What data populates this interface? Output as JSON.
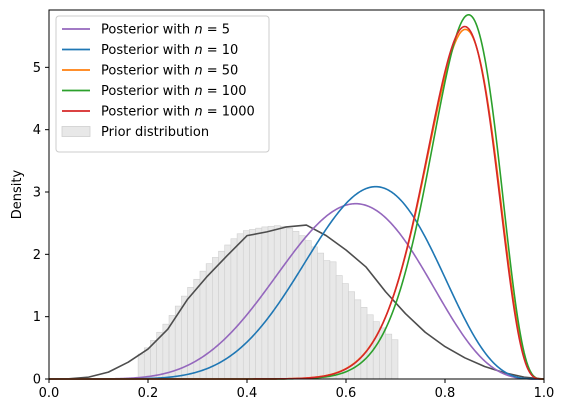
{
  "chart_data": {
    "type": "line",
    "title": "",
    "xlabel": "",
    "ylabel": "Density",
    "xlim": [
      0.0,
      1.0
    ],
    "ylim": [
      0.0,
      5.92
    ],
    "x_ticks": [
      0.0,
      0.2,
      0.4,
      0.6,
      0.8,
      1.0
    ],
    "x_tick_labels": [
      "0.0",
      "0.2",
      "0.4",
      "0.6",
      "0.8",
      "1.0"
    ],
    "y_ticks": [
      0,
      1,
      2,
      3,
      4,
      5
    ],
    "y_tick_labels": [
      "0",
      "1",
      "2",
      "3",
      "4",
      "5"
    ],
    "grid": false,
    "legend_position": "upper-left",
    "series": [
      {
        "name_prefix": "Posterior with ",
        "name_n": "5",
        "color": "#9467bd",
        "dist": "beta",
        "alpha": 7.35,
        "beta": 4.9
      },
      {
        "name_prefix": "Posterior with ",
        "name_n": "10",
        "color": "#1f77b4",
        "dist": "beta",
        "alpha": 8.92,
        "beta": 5.08
      },
      {
        "name_prefix": "Posterior with ",
        "name_n": "50",
        "color": "#ff7f0e",
        "dist": "beta",
        "alpha": 22.46,
        "beta": 5.05
      },
      {
        "name_prefix": "Posterior with ",
        "name_n": "100",
        "color": "#2ca02c",
        "dist": "beta",
        "alpha": 23.76,
        "beta": 5.09
      },
      {
        "name_prefix": "Posterior with ",
        "name_n": "1000",
        "color": "#d62728",
        "dist": "beta",
        "alpha": 22.93,
        "beta": 5.18
      }
    ],
    "prior": {
      "name": "Prior distribution",
      "bar_color": "#e8e8e8",
      "bar_edge": "#cfcfcf",
      "kde_color": "#4d4d4d",
      "bin_edges_start": 0.18,
      "bin_width": 0.0125,
      "bin_count": 42,
      "heights": [
        0.4,
        0.5,
        0.62,
        0.75,
        0.88,
        1.02,
        1.17,
        1.33,
        1.47,
        1.6,
        1.73,
        1.85,
        1.95,
        2.05,
        2.15,
        2.25,
        2.33,
        2.38,
        2.4,
        2.42,
        2.44,
        2.45,
        2.46,
        2.45,
        2.42,
        2.37,
        2.3,
        2.22,
        2.12,
        2.02,
        1.9,
        1.88,
        1.66,
        1.53,
        1.4,
        1.27,
        1.15,
        1.03,
        0.92,
        0.82,
        0.72,
        0.63
      ],
      "kde": [
        [
          0.0,
          0.0
        ],
        [
          0.04,
          0.003
        ],
        [
          0.08,
          0.03
        ],
        [
          0.12,
          0.11
        ],
        [
          0.16,
          0.27
        ],
        [
          0.2,
          0.48
        ],
        [
          0.24,
          0.8
        ],
        [
          0.28,
          1.28
        ],
        [
          0.32,
          1.65
        ],
        [
          0.36,
          1.98
        ],
        [
          0.4,
          2.3
        ],
        [
          0.44,
          2.36
        ],
        [
          0.48,
          2.44
        ],
        [
          0.52,
          2.47
        ],
        [
          0.56,
          2.3
        ],
        [
          0.6,
          2.07
        ],
        [
          0.64,
          1.8
        ],
        [
          0.68,
          1.4
        ],
        [
          0.72,
          1.05
        ],
        [
          0.76,
          0.75
        ],
        [
          0.8,
          0.52
        ],
        [
          0.84,
          0.34
        ],
        [
          0.88,
          0.2
        ],
        [
          0.92,
          0.1
        ],
        [
          0.96,
          0.03
        ],
        [
          1.0,
          0.0
        ]
      ]
    }
  }
}
